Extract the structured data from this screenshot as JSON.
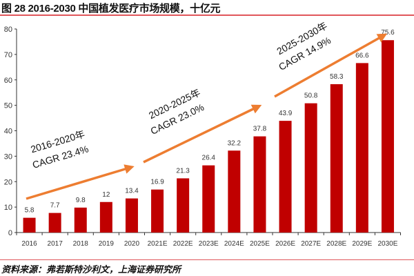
{
  "title": "图 28 2016-2030 中国植发医疗市场规模，十亿元",
  "source": "资料来源：弗若斯特沙利文，上海证券研究所",
  "colors": {
    "bar": "#C00000",
    "arrow": "#ED7D31",
    "rule": "#E0555A"
  },
  "chart_data": {
    "type": "bar",
    "categories": [
      "2016",
      "2017",
      "2018",
      "2019",
      "2020",
      "2021E",
      "2022E",
      "2023E",
      "2024E",
      "2025E",
      "2026E",
      "2027E",
      "2028E",
      "2029E",
      "2030E"
    ],
    "values": [
      5.8,
      7.7,
      9.8,
      12,
      13.4,
      16.9,
      21.3,
      26.4,
      32.2,
      37.8,
      43.9,
      50.8,
      58.3,
      66.6,
      75.6
    ],
    "data_labels": [
      "5.8",
      "7.7",
      "9.8",
      "12",
      "13.4",
      "16.9",
      "21.3",
      "26.4",
      "32.2",
      "37.8",
      "43.9",
      "50.8",
      "58.3",
      "66.6",
      "75.6"
    ],
    "ylim": [
      0,
      80
    ],
    "yticks": [
      "0",
      "10",
      "20",
      "30",
      "40",
      "50",
      "60",
      "70",
      "80"
    ],
    "grid": false,
    "annotations": [
      {
        "line1": "2016-2020年",
        "line2": "CAGR 23.4%",
        "from_category": "2016",
        "to_category": "2020"
      },
      {
        "line1": "2020-2025年",
        "line2": "CAGR 23.0%",
        "from_category": "2021E",
        "to_category": "2025E"
      },
      {
        "line1": "2025-2030年",
        "line2": "CAGR 14.9%",
        "from_category": "2026E",
        "to_category": "2030E"
      }
    ]
  }
}
